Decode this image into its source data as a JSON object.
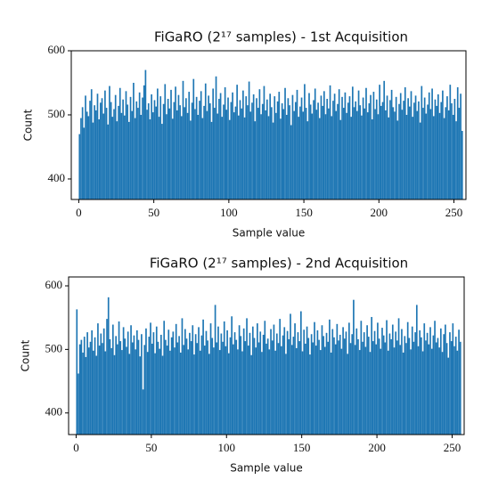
{
  "chart_data": [
    {
      "type": "histogram",
      "title": "FiGaRO (2¹⁷ samples) - 1st Acquisition",
      "x_label": "Sample value",
      "y_label": "Count",
      "color": "#1f77b4",
      "xlim": [
        -5,
        258
      ],
      "ylim": [
        368,
        600
      ],
      "xticks": [
        0,
        50,
        100,
        150,
        200,
        250
      ],
      "yticks": [
        400,
        500,
        600
      ],
      "bins": [
        0,
        1,
        2,
        3,
        4,
        5,
        6,
        7,
        8,
        9,
        10,
        11,
        12,
        13,
        14,
        15,
        16,
        17,
        18,
        19,
        20,
        21,
        22,
        23,
        24,
        25,
        26,
        27,
        28,
        29,
        30,
        31,
        32,
        33,
        34,
        35,
        36,
        37,
        38,
        39,
        40,
        41,
        42,
        43,
        44,
        45,
        46,
        47,
        48,
        49,
        50,
        51,
        52,
        53,
        54,
        55,
        56,
        57,
        58,
        59,
        60,
        61,
        62,
        63,
        64,
        65,
        66,
        67,
        68,
        69,
        70,
        71,
        72,
        73,
        74,
        75,
        76,
        77,
        78,
        79,
        80,
        81,
        82,
        83,
        84,
        85,
        86,
        87,
        88,
        89,
        90,
        91,
        92,
        93,
        94,
        95,
        96,
        97,
        98,
        99,
        100,
        101,
        102,
        103,
        104,
        105,
        106,
        107,
        108,
        109,
        110,
        111,
        112,
        113,
        114,
        115,
        116,
        117,
        118,
        119,
        120,
        121,
        122,
        123,
        124,
        125,
        126,
        127,
        128,
        129,
        130,
        131,
        132,
        133,
        134,
        135,
        136,
        137,
        138,
        139,
        140,
        141,
        142,
        143,
        144,
        145,
        146,
        147,
        148,
        149,
        150,
        151,
        152,
        153,
        154,
        155,
        156,
        157,
        158,
        159,
        160,
        161,
        162,
        163,
        164,
        165,
        166,
        167,
        168,
        169,
        170,
        171,
        172,
        173,
        174,
        175,
        176,
        177,
        178,
        179,
        180,
        181,
        182,
        183,
        184,
        185,
        186,
        187,
        188,
        189,
        190,
        191,
        192,
        193,
        194,
        195,
        196,
        197,
        198,
        199,
        200,
        201,
        202,
        203,
        204,
        205,
        206,
        207,
        208,
        209,
        210,
        211,
        212,
        213,
        214,
        215,
        216,
        217,
        218,
        219,
        220,
        221,
        222,
        223,
        224,
        225,
        226,
        227,
        228,
        229,
        230,
        231,
        232,
        233,
        234,
        235,
        236,
        237,
        238,
        239,
        240,
        241,
        242,
        243,
        244,
        245,
        246,
        247,
        248,
        249,
        250,
        251,
        252,
        253,
        254,
        255,
        256
      ],
      "values": [
        470,
        495,
        512,
        480,
        530,
        505,
        498,
        522,
        540,
        488,
        515,
        507,
        533,
        493,
        519,
        526,
        502,
        538,
        511,
        485,
        545,
        520,
        497,
        509,
        531,
        490,
        514,
        542,
        503,
        524,
        499,
        537,
        516,
        489,
        528,
        506,
        550,
        495,
        521,
        511,
        535,
        500,
        527,
        546,
        570,
        508,
        518,
        493,
        532,
        504,
        523,
        513,
        541,
        497,
        529,
        486,
        517,
        548,
        501,
        525,
        510,
        539,
        494,
        520,
        544,
        507,
        531,
        515,
        498,
        553,
        512,
        526,
        503,
        536,
        491,
        519,
        556,
        509,
        528,
        500,
        522,
        537,
        495,
        514,
        549,
        506,
        530,
        518,
        489,
        541,
        511,
        560,
        502,
        525,
        534,
        497,
        516,
        543,
        508,
        527,
        492,
        520,
        535,
        504,
        513,
        547,
        499,
        523,
        510,
        538,
        496,
        529,
        515,
        552,
        505,
        519,
        532,
        490,
        526,
        511,
        540,
        501,
        517,
        545,
        507,
        524,
        498,
        533,
        512,
        488,
        529,
        503,
        521,
        536,
        494,
        518,
        509,
        542,
        500,
        526,
        515,
        484,
        531,
        506,
        520,
        539,
        497,
        513,
        527,
        505,
        548,
        511,
        490,
        534,
        516,
        502,
        523,
        541,
        508,
        519,
        495,
        530,
        514,
        537,
        501,
        525,
        510,
        546,
        498,
        522,
        533,
        506,
        517,
        540,
        492,
        528,
        511,
        535,
        503,
        519,
        529,
        497,
        544,
        512,
        521,
        506,
        538,
        515,
        499,
        527,
        510,
        542,
        504,
        518,
        531,
        493,
        536,
        509,
        524,
        501,
        547,
        514,
        520,
        553,
        507,
        530,
        496,
        523,
        539,
        512,
        505,
        528,
        491,
        517,
        534,
        508,
        522,
        543,
        500,
        526,
        513,
        537,
        497,
        519,
        530,
        506,
        521,
        488,
        545,
        511,
        527,
        502,
        516,
        535,
        509,
        541,
        498,
        524,
        514,
        532,
        503,
        520,
        538,
        495,
        512,
        529,
        507,
        547,
        518,
        500,
        525,
        490,
        543,
        511,
        533,
        475
      ]
    },
    {
      "type": "histogram",
      "title": "FiGaRO (2¹⁷ samples) - 2nd Acquisition",
      "x_label": "Sample value",
      "y_label": "Count",
      "color": "#1f77b4",
      "xlim": [
        -5,
        258
      ],
      "ylim": [
        366,
        614
      ],
      "xticks": [
        0,
        50,
        100,
        150,
        200,
        250
      ],
      "yticks": [
        400,
        500,
        600
      ],
      "bins": [
        0,
        1,
        2,
        3,
        4,
        5,
        6,
        7,
        8,
        9,
        10,
        11,
        12,
        13,
        14,
        15,
        16,
        17,
        18,
        19,
        20,
        21,
        22,
        23,
        24,
        25,
        26,
        27,
        28,
        29,
        30,
        31,
        32,
        33,
        34,
        35,
        36,
        37,
        38,
        39,
        40,
        41,
        42,
        43,
        44,
        45,
        46,
        47,
        48,
        49,
        50,
        51,
        52,
        53,
        54,
        55,
        56,
        57,
        58,
        59,
        60,
        61,
        62,
        63,
        64,
        65,
        66,
        67,
        68,
        69,
        70,
        71,
        72,
        73,
        74,
        75,
        76,
        77,
        78,
        79,
        80,
        81,
        82,
        83,
        84,
        85,
        86,
        87,
        88,
        89,
        90,
        91,
        92,
        93,
        94,
        95,
        96,
        97,
        98,
        99,
        100,
        101,
        102,
        103,
        104,
        105,
        106,
        107,
        108,
        109,
        110,
        111,
        112,
        113,
        114,
        115,
        116,
        117,
        118,
        119,
        120,
        121,
        122,
        123,
        124,
        125,
        126,
        127,
        128,
        129,
        130,
        131,
        132,
        133,
        134,
        135,
        136,
        137,
        138,
        139,
        140,
        141,
        142,
        143,
        144,
        145,
        146,
        147,
        148,
        149,
        150,
        151,
        152,
        153,
        154,
        155,
        156,
        157,
        158,
        159,
        160,
        161,
        162,
        163,
        164,
        165,
        166,
        167,
        168,
        169,
        170,
        171,
        172,
        173,
        174,
        175,
        176,
        177,
        178,
        179,
        180,
        181,
        182,
        183,
        184,
        185,
        186,
        187,
        188,
        189,
        190,
        191,
        192,
        193,
        194,
        195,
        196,
        197,
        198,
        199,
        200,
        201,
        202,
        203,
        204,
        205,
        206,
        207,
        208,
        209,
        210,
        211,
        212,
        213,
        214,
        215,
        216,
        217,
        218,
        219,
        220,
        221,
        222,
        223,
        224,
        225,
        226,
        227,
        228,
        229,
        230,
        231,
        232,
        233,
        234,
        235,
        236,
        237,
        238,
        239,
        240,
        241,
        242,
        243,
        244,
        245,
        246,
        247,
        248,
        249,
        250,
        251,
        252,
        253,
        254,
        255,
        256
      ],
      "values": [
        563,
        462,
        508,
        515,
        495,
        520,
        488,
        527,
        503,
        512,
        530,
        498,
        519,
        490,
        541,
        506,
        525,
        510,
        533,
        497,
        548,
        582,
        516,
        502,
        539,
        491,
        521,
        508,
        544,
        513,
        499,
        535,
        517,
        504,
        528,
        493,
        538,
        511,
        522,
        500,
        530,
        515,
        489,
        524,
        437,
        507,
        533,
        496,
        520,
        542,
        509,
        527,
        494,
        536,
        512,
        501,
        523,
        490,
        545,
        515,
        506,
        531,
        498,
        519,
        528,
        503,
        540,
        511,
        521,
        495,
        549,
        507,
        532,
        517,
        500,
        526,
        513,
        538,
        492,
        524,
        510,
        535,
        498,
        522,
        547,
        506,
        529,
        514,
        493,
        541,
        518,
        503,
        570,
        511,
        536,
        499,
        525,
        512,
        544,
        505,
        530,
        494,
        519,
        552,
        508,
        527,
        515,
        500,
        538,
        521,
        497,
        533,
        513,
        549,
        506,
        526,
        491,
        536,
        518,
        503,
        541,
        511,
        528,
        496,
        523,
        545,
        509,
        517,
        500,
        532,
        514,
        539,
        498,
        525,
        510,
        548,
        505,
        522,
        535,
        493,
        529,
        516,
        556,
        507,
        520,
        541,
        502,
        527,
        513,
        560,
        497,
        531,
        509,
        536,
        518,
        492,
        524,
        511,
        543,
        506,
        530,
        515,
        499,
        538,
        521,
        504,
        526,
        512,
        547,
        495,
        532,
        519,
        508,
        540,
        514,
        523,
        501,
        535,
        517,
        528,
        493,
        542,
        510,
        524,
        578,
        507,
        533,
        516,
        499,
        545,
        512,
        527,
        504,
        538,
        520,
        496,
        551,
        513,
        529,
        508,
        542,
        517,
        501,
        534,
        522,
        511,
        546,
        498,
        525,
        516,
        539,
        503,
        528,
        514,
        549,
        507,
        532,
        495,
        521,
        510,
        543,
        518,
        500,
        536,
        512,
        527,
        570,
        505,
        530,
        519,
        497,
        541,
        514,
        526,
        508,
        535,
        501,
        522,
        545,
        511,
        518,
        503,
        533,
        496,
        524,
        539,
        510,
        487,
        527,
        513,
        541,
        505,
        520,
        498,
        531,
        512
      ]
    }
  ]
}
